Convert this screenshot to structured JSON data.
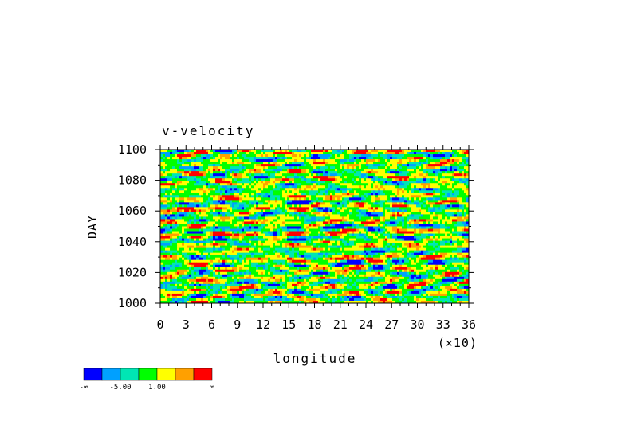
{
  "chart_data": {
    "type": "heatmap",
    "title": "v-velocity",
    "xlabel": "longitude",
    "ylabel": "DAY",
    "x_multiplier_label": "(×10)",
    "xlim": [
      0,
      36
    ],
    "ylim": [
      1000,
      1100
    ],
    "x_tick_labels": [
      "0",
      "3",
      "6",
      "9",
      "12",
      "15",
      "18",
      "21",
      "24",
      "27",
      "30",
      "33",
      "36"
    ],
    "y_tick_labels": [
      "1000",
      "1020",
      "1040",
      "1060",
      "1080",
      "1100"
    ],
    "colorbar": {
      "colors": [
        "#0000ff",
        "#00a0ff",
        "#00e6b4",
        "#00ff00",
        "#ffff00",
        "#ffa000",
        "#ff0000"
      ],
      "labels": [
        "-∞",
        "-5.00",
        "1.00",
        "∞"
      ]
    }
  }
}
